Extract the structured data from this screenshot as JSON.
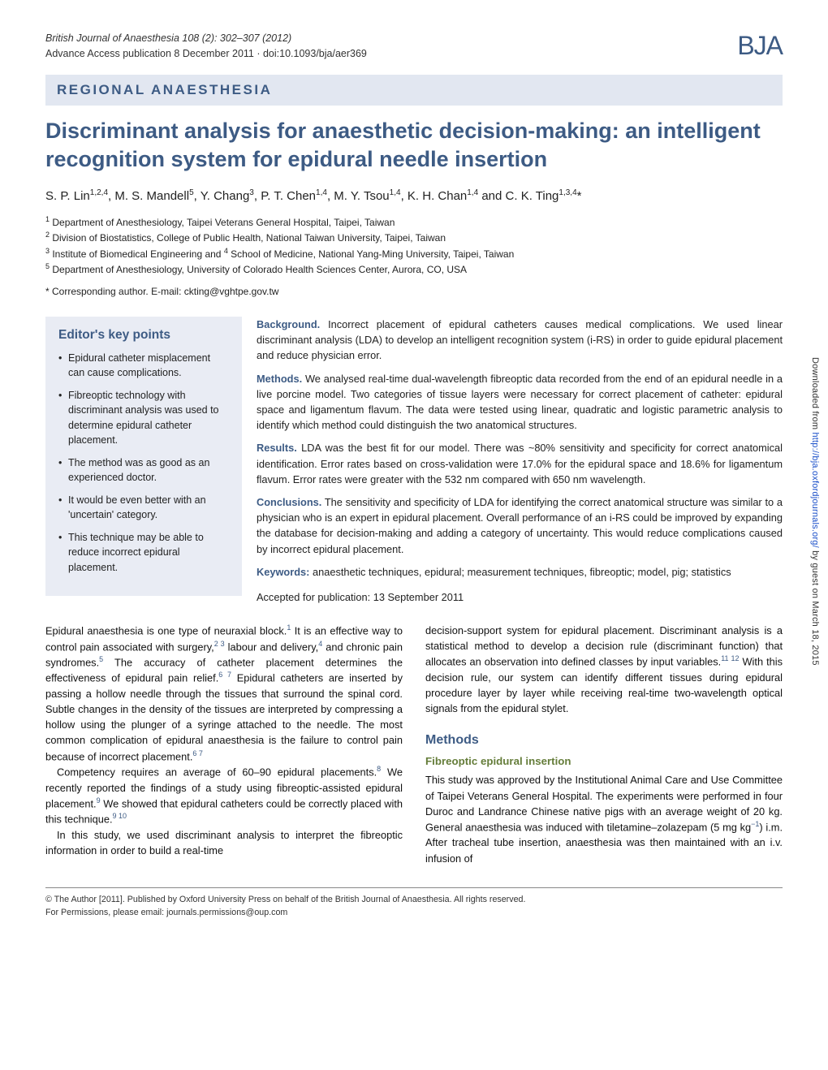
{
  "journal": {
    "citation": "British Journal of Anaesthesia 108 (2): 302–307 (2012)",
    "advance": "Advance Access publication 8 December 2011 · doi:10.1093/bja/aer369",
    "logo": "BJA"
  },
  "section_banner": "REGIONAL ANAESTHESIA",
  "title": "Discriminant analysis for anaesthetic decision-making: an intelligent recognition system for epidural needle insertion",
  "authors_html": "S. P. Lin<sup>1,2,4</sup>, M. S. Mandell<sup>5</sup>, Y. Chang<sup>3</sup>, P. T. Chen<sup>1,4</sup>, M. Y. Tsou<sup>1,4</sup>, K. H. Chan<sup>1,4</sup> and C. K. Ting<sup>1,3,4</sup>*",
  "affiliations": [
    "<sup>1</sup> Department of Anesthesiology, Taipei Veterans General Hospital, Taipei, Taiwan",
    "<sup>2</sup> Division of Biostatistics, College of Public Health, National Taiwan University, Taipei, Taiwan",
    "<sup>3</sup> Institute of Biomedical Engineering and <sup>4</sup> School of Medicine, National Yang-Ming University, Taipei, Taiwan",
    "<sup>5</sup> Department of Anesthesiology, University of Colorado Health Sciences Center, Aurora, CO, USA"
  ],
  "corresponding": "* Corresponding author. E-mail: ckting@vghtpe.gov.tw",
  "keypoints": {
    "title": "Editor's key points",
    "items": [
      "Epidural catheter misplacement can cause complications.",
      "Fibreoptic technology with discriminant analysis was used to determine epidural catheter placement.",
      "The method was as good as an experienced doctor.",
      "It would be even better with an 'uncertain' category.",
      "This technique may be able to reduce incorrect epidural placement."
    ]
  },
  "abstract": {
    "background_label": "Background.",
    "background": " Incorrect placement of epidural catheters causes medical complications. We used linear discriminant analysis (LDA) to develop an intelligent recognition system (i-RS) in order to guide epidural placement and reduce physician error.",
    "methods_label": "Methods.",
    "methods": " We analysed real-time dual-wavelength fibreoptic data recorded from the end of an epidural needle in a live porcine model. Two categories of tissue layers were necessary for correct placement of catheter: epidural space and ligamentum flavum. The data were tested using linear, quadratic and logistic parametric analysis to identify which method could distinguish the two anatomical structures.",
    "results_label": "Results.",
    "results": " LDA was the best fit for our model. There was ~80% sensitivity and specificity for correct anatomical identification. Error rates based on cross-validation were 17.0% for the epidural space and 18.6% for ligamentum flavum. Error rates were greater with the 532 nm compared with 650 nm wavelength.",
    "conclusions_label": "Conclusions.",
    "conclusions": " The sensitivity and specificity of LDA for identifying the correct anatomical structure was similar to a physician who is an expert in epidural placement. Overall performance of an i-RS could be improved by expanding the database for decision-making and adding a category of uncertainty. This would reduce complications caused by incorrect epidural placement.",
    "keywords_label": "Keywords:",
    "keywords": " anaesthetic techniques, epidural; measurement techniques, fibreoptic; model, pig; statistics",
    "accepted": "Accepted for publication: 13 September 2011"
  },
  "body": {
    "left": [
      "Epidural anaesthesia is one type of neuraxial block.<sup>1</sup> It is an effective way to control pain associated with surgery,<sup>2 3</sup> labour and delivery,<sup>4</sup> and chronic pain syndromes.<sup>5</sup> The accuracy of catheter placement determines the effectiveness of epidural pain relief.<sup>6 7</sup> Epidural catheters are inserted by passing a hollow needle through the tissues that surround the spinal cord. Subtle changes in the density of the tissues are interpreted by compressing a hollow using the plunger of a syringe attached to the needle. The most common complication of epidural anaesthesia is the failure to control pain because of incorrect placement.<sup>6 7</sup>",
      "Competency requires an average of 60–90 epidural placements.<sup>8</sup> We recently reported the findings of a study using fibreoptic-assisted epidural placement.<sup>9</sup> We showed that epidural catheters could be correctly placed with this technique.<sup>9 10</sup>",
      "In this study, we used discriminant analysis to interpret the fibreoptic information in order to build a real-time"
    ],
    "right_intro": "decision-support system for epidural placement. Discriminant analysis is a statistical method to develop a decision rule (discriminant function) that allocates an observation into defined classes by input variables.<sup>11 12</sup> With this decision rule, our system can identify different tissues during epidural procedure layer by layer while receiving real-time two-wavelength optical signals from the epidural stylet.",
    "methods_heading": "Methods",
    "sub_heading": "Fibreoptic epidural insertion",
    "right_methods": "This study was approved by the Institutional Animal Care and Use Committee of Taipei Veterans General Hospital. The experiments were performed in four Duroc and Landrance Chinese native pigs with an average weight of 20 kg. General anaesthesia was induced with tiletamine–zolazepam (5 mg kg<sup>−1</sup>) i.m. After tracheal tube insertion, anaesthesia was then maintained with an i.v. infusion of"
  },
  "footer": {
    "line1": "© The Author [2011]. Published by Oxford University Press on behalf of the British Journal of Anaesthesia. All rights reserved.",
    "line2": "For Permissions, please email: journals.permissions@oup.com"
  },
  "side_note": {
    "prefix": "Downloaded from ",
    "url": "http://bja.oxfordjournals.org/",
    "suffix": " by guest on March 18, 2015"
  },
  "colors": {
    "accent": "#3d5b84",
    "banner_bg": "#e2e7f1",
    "box_bg": "#e9ecf4",
    "subheading": "#657d3a",
    "link": "#1a4fc9"
  }
}
